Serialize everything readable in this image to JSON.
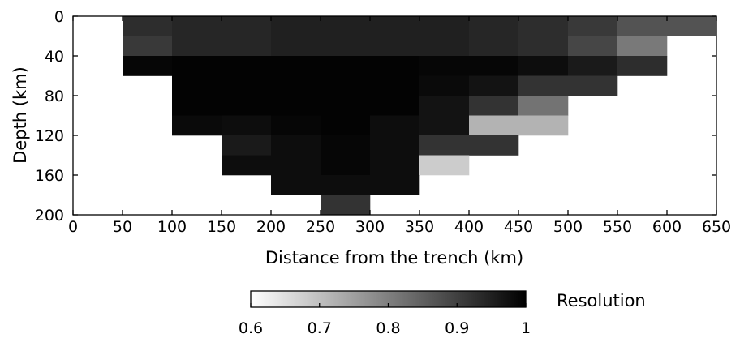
{
  "chart_data": {
    "type": "heatmap",
    "title": "",
    "xlabel": "Distance from the trench (km)",
    "ylabel": "Depth (km)",
    "xlim": [
      0,
      650
    ],
    "ylim": [
      0,
      200
    ],
    "y_inverted": true,
    "xticks": [
      0,
      50,
      100,
      150,
      200,
      250,
      300,
      350,
      400,
      450,
      500,
      550,
      600,
      650
    ],
    "yticks": [
      0,
      40,
      80,
      120,
      160,
      200
    ],
    "cell_width_km": 50,
    "row_depth_edges": [
      0,
      20,
      40,
      60,
      80,
      100,
      120,
      140,
      160,
      180,
      200
    ],
    "colorbar": {
      "label": "Resolution",
      "min": 0.6,
      "max": 1,
      "ticks": [
        "0.6",
        "0.7",
        "0.8",
        "0.9",
        "1"
      ]
    },
    "cells": [
      {
        "x0": 50,
        "y0": 0,
        "v": 0.93
      },
      {
        "x0": 100,
        "y0": 0,
        "v": 0.94
      },
      {
        "x0": 150,
        "y0": 0,
        "v": 0.94
      },
      {
        "x0": 200,
        "y0": 0,
        "v": 0.95
      },
      {
        "x0": 250,
        "y0": 0,
        "v": 0.95
      },
      {
        "x0": 300,
        "y0": 0,
        "v": 0.95
      },
      {
        "x0": 350,
        "y0": 0,
        "v": 0.95
      },
      {
        "x0": 400,
        "y0": 0,
        "v": 0.94
      },
      {
        "x0": 450,
        "y0": 0,
        "v": 0.93
      },
      {
        "x0": 500,
        "y0": 0,
        "v": 0.91
      },
      {
        "x0": 550,
        "y0": 0,
        "v": 0.87
      },
      {
        "x0": 600,
        "y0": 0,
        "v": 0.87
      },
      {
        "x0": 50,
        "y0": 20,
        "v": 0.91
      },
      {
        "x0": 100,
        "y0": 20,
        "v": 0.94
      },
      {
        "x0": 150,
        "y0": 20,
        "v": 0.94
      },
      {
        "x0": 200,
        "y0": 20,
        "v": 0.95
      },
      {
        "x0": 250,
        "y0": 20,
        "v": 0.95
      },
      {
        "x0": 300,
        "y0": 20,
        "v": 0.95
      },
      {
        "x0": 350,
        "y0": 20,
        "v": 0.95
      },
      {
        "x0": 400,
        "y0": 20,
        "v": 0.94
      },
      {
        "x0": 450,
        "y0": 20,
        "v": 0.93
      },
      {
        "x0": 500,
        "y0": 20,
        "v": 0.89
      },
      {
        "x0": 550,
        "y0": 20,
        "v": 0.81
      },
      {
        "x0": 50,
        "y0": 40,
        "v": 0.99
      },
      {
        "x0": 100,
        "y0": 40,
        "v": 0.995
      },
      {
        "x0": 150,
        "y0": 40,
        "v": 0.995
      },
      {
        "x0": 200,
        "y0": 40,
        "v": 0.995
      },
      {
        "x0": 250,
        "y0": 40,
        "v": 0.995
      },
      {
        "x0": 300,
        "y0": 40,
        "v": 0.995
      },
      {
        "x0": 350,
        "y0": 40,
        "v": 0.99
      },
      {
        "x0": 400,
        "y0": 40,
        "v": 0.99
      },
      {
        "x0": 450,
        "y0": 40,
        "v": 0.98
      },
      {
        "x0": 500,
        "y0": 40,
        "v": 0.96
      },
      {
        "x0": 550,
        "y0": 40,
        "v": 0.93
      },
      {
        "x0": 100,
        "y0": 60,
        "v": 0.995
      },
      {
        "x0": 150,
        "y0": 60,
        "v": 0.995
      },
      {
        "x0": 200,
        "y0": 60,
        "v": 0.995
      },
      {
        "x0": 250,
        "y0": 60,
        "v": 0.995
      },
      {
        "x0": 300,
        "y0": 60,
        "v": 0.995
      },
      {
        "x0": 350,
        "y0": 60,
        "v": 0.985
      },
      {
        "x0": 400,
        "y0": 60,
        "v": 0.97
      },
      {
        "x0": 450,
        "y0": 60,
        "v": 0.92
      },
      {
        "x0": 500,
        "y0": 60,
        "v": 0.92
      },
      {
        "x0": 100,
        "y0": 80,
        "v": 0.995
      },
      {
        "x0": 150,
        "y0": 80,
        "v": 0.995
      },
      {
        "x0": 200,
        "y0": 80,
        "v": 0.995
      },
      {
        "x0": 250,
        "y0": 80,
        "v": 0.995
      },
      {
        "x0": 300,
        "y0": 80,
        "v": 0.995
      },
      {
        "x0": 350,
        "y0": 80,
        "v": 0.97
      },
      {
        "x0": 400,
        "y0": 80,
        "v": 0.92
      },
      {
        "x0": 450,
        "y0": 80,
        "v": 0.82
      },
      {
        "x0": 100,
        "y0": 100,
        "v": 0.985
      },
      {
        "x0": 150,
        "y0": 100,
        "v": 0.98
      },
      {
        "x0": 200,
        "y0": 100,
        "v": 0.99
      },
      {
        "x0": 250,
        "y0": 100,
        "v": 0.995
      },
      {
        "x0": 300,
        "y0": 100,
        "v": 0.98
      },
      {
        "x0": 350,
        "y0": 100,
        "v": 0.97
      },
      {
        "x0": 400,
        "y0": 100,
        "v": 0.72
      },
      {
        "x0": 450,
        "y0": 100,
        "v": 0.72
      },
      {
        "x0": 150,
        "y0": 120,
        "v": 0.96
      },
      {
        "x0": 200,
        "y0": 120,
        "v": 0.98
      },
      {
        "x0": 250,
        "y0": 120,
        "v": 0.99
      },
      {
        "x0": 300,
        "y0": 120,
        "v": 0.98
      },
      {
        "x0": 350,
        "y0": 120,
        "v": 0.92
      },
      {
        "x0": 400,
        "y0": 120,
        "v": 0.92
      },
      {
        "x0": 150,
        "y0": 140,
        "v": 0.98
      },
      {
        "x0": 200,
        "y0": 140,
        "v": 0.98
      },
      {
        "x0": 250,
        "y0": 140,
        "v": 0.99
      },
      {
        "x0": 300,
        "y0": 140,
        "v": 0.98
      },
      {
        "x0": 350,
        "y0": 140,
        "v": 0.68
      },
      {
        "x0": 200,
        "y0": 160,
        "v": 0.98
      },
      {
        "x0": 250,
        "y0": 160,
        "v": 0.98
      },
      {
        "x0": 300,
        "y0": 160,
        "v": 0.98
      },
      {
        "x0": 250,
        "y0": 180,
        "v": 0.92
      }
    ]
  }
}
